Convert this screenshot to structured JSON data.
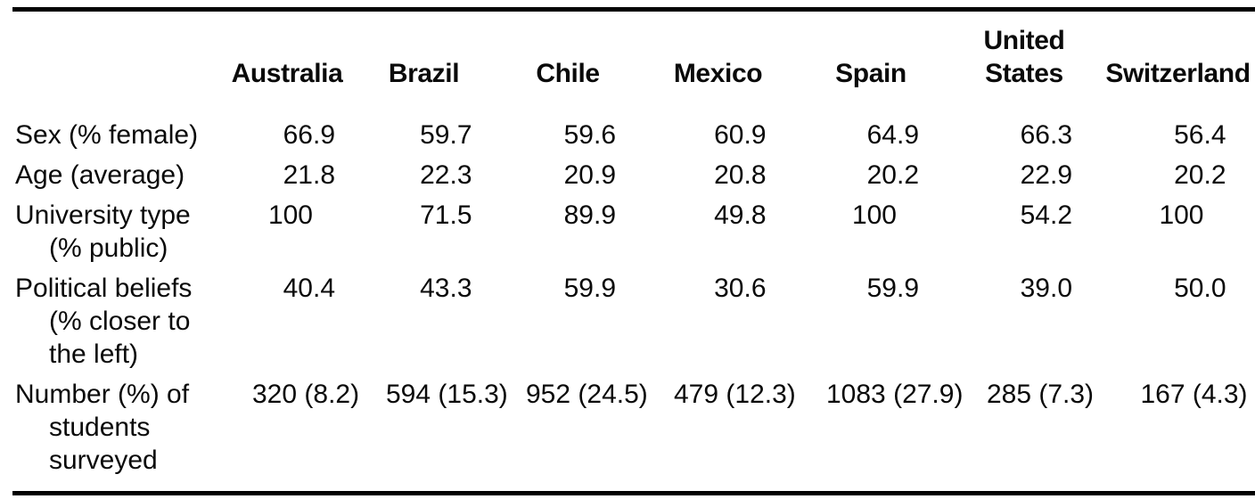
{
  "table": {
    "columns": [
      {
        "lines": [
          "Australia"
        ]
      },
      {
        "lines": [
          "Brazil"
        ]
      },
      {
        "lines": [
          "Chile"
        ]
      },
      {
        "lines": [
          "Mexico"
        ]
      },
      {
        "lines": [
          "Spain"
        ]
      },
      {
        "lines": [
          "United",
          "States"
        ]
      },
      {
        "lines": [
          "Switzerland"
        ]
      }
    ],
    "rows": [
      {
        "label_lines": [
          "Sex (% female)"
        ],
        "values": [
          "66.9",
          "59.7",
          "59.6",
          "60.9",
          "64.9",
          "66.3",
          "56.4"
        ]
      },
      {
        "label_lines": [
          "Age (average)"
        ],
        "values": [
          "21.8",
          "22.3",
          "20.9",
          "20.8",
          "20.2",
          "22.9",
          "20.2"
        ]
      },
      {
        "label_lines": [
          "University type",
          "(% public)"
        ],
        "values": [
          "100",
          "71.5",
          "89.9",
          "49.8",
          "100",
          "54.2",
          "100"
        ]
      },
      {
        "label_lines": [
          "Political beliefs",
          "(% closer to",
          "the left)"
        ],
        "values": [
          "40.4",
          "43.3",
          "59.9",
          "30.6",
          "59.9",
          "39.0",
          "50.0"
        ]
      },
      {
        "label_lines": [
          "Number (%) of",
          "students",
          "surveyed"
        ],
        "values": [
          "320 (8.2)",
          "594 (15.3)",
          "952 (24.5)",
          "479 (12.3)",
          "1083 (27.9)",
          "285 (7.3)",
          "167 (4.3)"
        ]
      }
    ]
  },
  "chart_data": {
    "type": "table",
    "categories": [
      "Australia",
      "Brazil",
      "Chile",
      "Mexico",
      "Spain",
      "United States",
      "Switzerland"
    ],
    "series": [
      {
        "name": "Sex (% female)",
        "values": [
          66.9,
          59.7,
          59.6,
          60.9,
          64.9,
          66.3,
          56.4
        ]
      },
      {
        "name": "Age (average)",
        "values": [
          21.8,
          22.3,
          20.9,
          20.8,
          20.2,
          22.9,
          20.2
        ]
      },
      {
        "name": "University type (% public)",
        "values": [
          100,
          71.5,
          89.9,
          49.8,
          100,
          54.2,
          100
        ]
      },
      {
        "name": "Political beliefs (% closer to the left)",
        "values": [
          40.4,
          43.3,
          59.9,
          30.6,
          59.9,
          39.0,
          50.0
        ]
      },
      {
        "name": "Number of students surveyed",
        "values": [
          320,
          594,
          952,
          479,
          1083,
          285,
          167
        ]
      },
      {
        "name": "% of students surveyed",
        "values": [
          8.2,
          15.3,
          24.5,
          12.3,
          27.9,
          7.3,
          4.3
        ]
      }
    ]
  },
  "colors": {
    "background": "#ffffff",
    "text": "#0a0a0a",
    "rule": "#000000"
  }
}
